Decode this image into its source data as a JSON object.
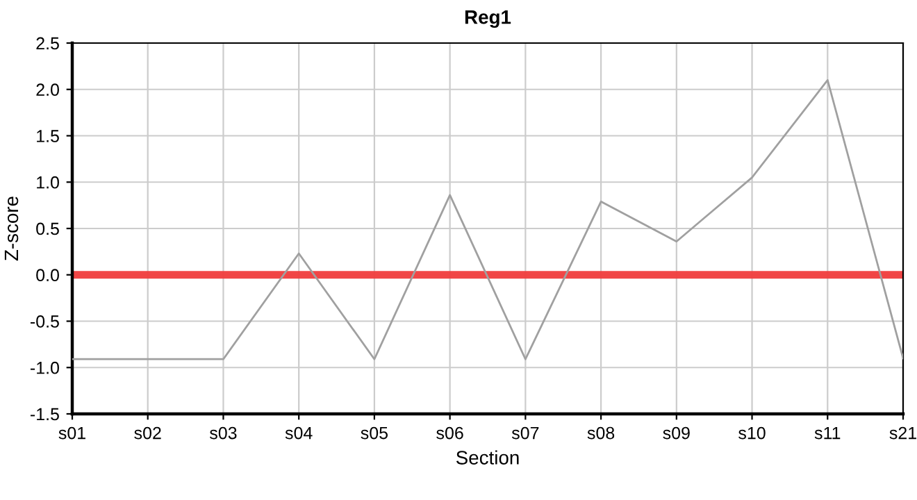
{
  "chart_data": {
    "type": "line",
    "title": "Reg1",
    "xlabel": "Section",
    "ylabel": "Z-score",
    "categories": [
      "s01",
      "s02",
      "s03",
      "s04",
      "s05",
      "s06",
      "s07",
      "s08",
      "s09",
      "s10",
      "s11",
      "s21"
    ],
    "series": [
      {
        "color": "#a0a0a0",
        "values": [
          -0.91,
          -0.91,
          -0.91,
          0.23,
          -0.91,
          0.86,
          -0.91,
          0.79,
          0.36,
          1.05,
          2.1,
          -0.9
        ]
      }
    ],
    "ylim": [
      -1.5,
      2.5
    ],
    "yticks": [
      {
        "value": -1.5,
        "label": "-1.5"
      },
      {
        "value": -1.0,
        "label": "-1.0"
      },
      {
        "value": -0.5,
        "label": "-0.5"
      },
      {
        "value": 0,
        "label": "0.0"
      },
      {
        "value": 0.5,
        "label": "0.5"
      },
      {
        "value": 1.0,
        "label": "1.0"
      },
      {
        "value": 1.5,
        "label": "1.5"
      },
      {
        "value": 2.0,
        "label": "2.0"
      },
      {
        "value": 2.5,
        "label": "2.5"
      }
    ],
    "ref_lines": [
      {
        "axis": "y",
        "value": 0,
        "color": "#f03c3c"
      }
    ],
    "grid": true,
    "legend": false,
    "marker": "none",
    "line_style": "solid"
  }
}
